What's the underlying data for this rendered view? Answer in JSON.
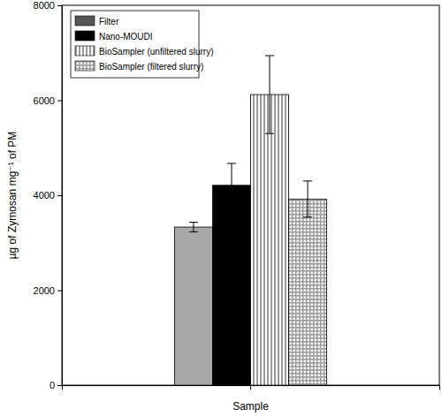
{
  "chart_data": {
    "type": "bar",
    "x_label": "Sample",
    "y_label": "µg of Zymosan mg⁻¹ of PM",
    "categories": [
      null
    ],
    "series": [
      {
        "name": "Filter",
        "color": "#a8a8a8",
        "values": [
          3330
        ],
        "errors": [
          100
        ]
      },
      {
        "name": "Nano-MOUDI",
        "color": "#000000",
        "values": [
          4210
        ],
        "errors": [
          460
        ]
      },
      {
        "name": "BioSampler (unfiltered slurry)",
        "color": "#9a9a9a",
        "values": [
          6120
        ],
        "errors": [
          820
        ]
      },
      {
        "name": "BioSampler (filtered slurry)",
        "color": "#9a9a9a",
        "values": [
          3920
        ],
        "errors": [
          380
        ]
      }
    ],
    "ylim": [
      0,
      8000
    ],
    "yticks": [
      0,
      2000,
      4000,
      6000,
      8000
    ],
    "legend": "upper left",
    "tick_labels": "y"
  }
}
